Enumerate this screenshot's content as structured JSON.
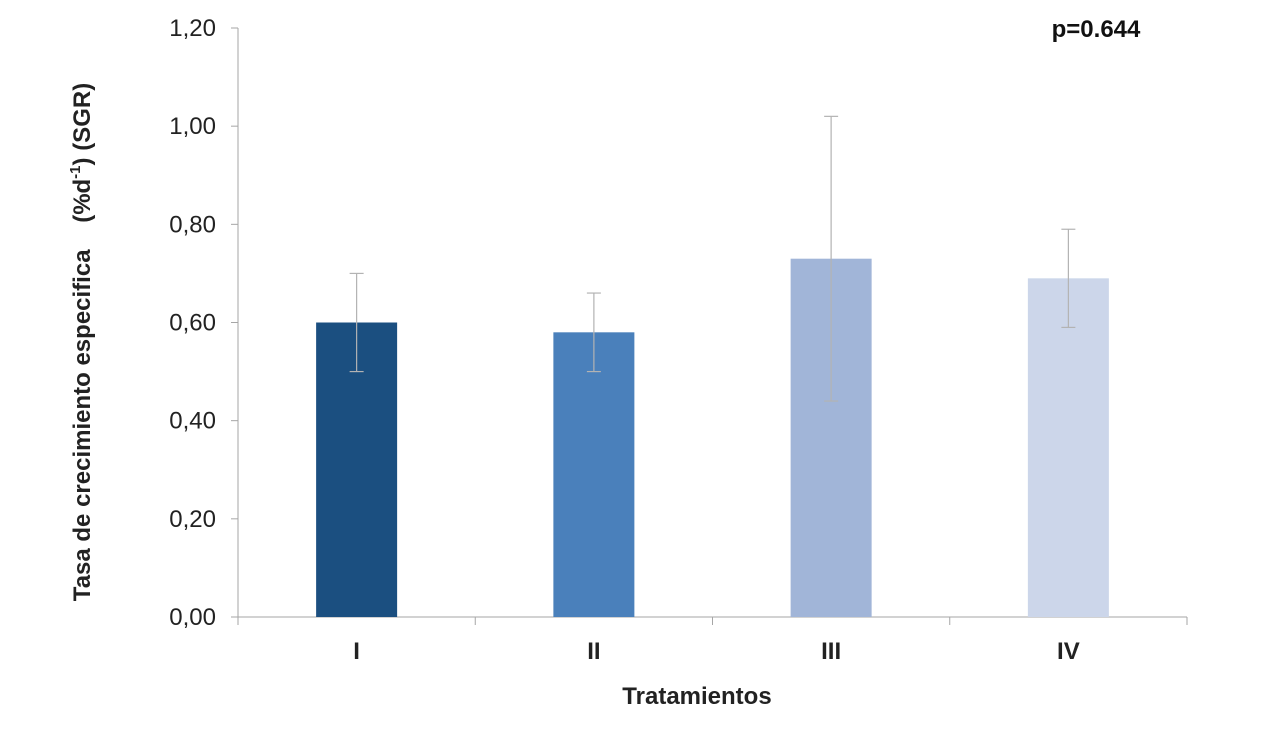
{
  "chart_data": {
    "type": "bar",
    "categories": [
      "I",
      "II",
      "III",
      "IV"
    ],
    "values": [
      0.6,
      0.58,
      0.73,
      0.69
    ],
    "error_upper": [
      0.7,
      0.66,
      1.02,
      0.79
    ],
    "error_lower": [
      0.5,
      0.5,
      0.44,
      0.59
    ],
    "colors": [
      "#1b4f80",
      "#4a80bb",
      "#a1b5d8",
      "#ccd6ea"
    ],
    "xlabel": "Tratamientos",
    "ylabel": {
      "prefix": "Tasa de crecimiento especifica    (%d",
      "superscript": "-1",
      "suffix": ") (SGR)"
    },
    "ylim": [
      0,
      1.2
    ],
    "yticks": [
      "0,00",
      "0,20",
      "0,40",
      "0,60",
      "0,80",
      "1,00",
      "1,20"
    ],
    "annotation": "p=0.644",
    "grid": false
  }
}
